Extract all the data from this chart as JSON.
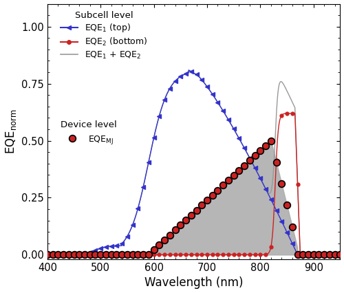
{
  "xlabel": "Wavelength (nm)",
  "ylabel": "EQE$_\\mathrm{norm}$",
  "xlim": [
    400,
    950
  ],
  "ylim": [
    -0.02,
    1.1
  ],
  "yticks": [
    0.0,
    0.25,
    0.5,
    0.75,
    1.0
  ],
  "xticks": [
    400,
    500,
    600,
    700,
    800,
    900
  ],
  "legend1_title": "Subcell level",
  "legend2_title": "Device level",
  "eqe1_color": "#3333cc",
  "eqe2_color": "#cc2222",
  "sum_color": "#999999",
  "mj_facecolor": "#cc2222",
  "mj_edgecolor": "#000000",
  "fill_color": "#aaaaaa",
  "background_color": "#ffffff"
}
